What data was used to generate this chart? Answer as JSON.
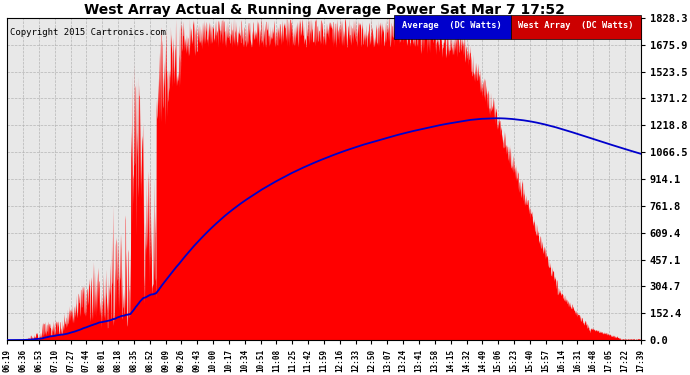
{
  "title": "West Array Actual & Running Average Power Sat Mar 7 17:52",
  "copyright": "Copyright 2015 Cartronics.com",
  "ylabel_right": [
    "0.0",
    "152.4",
    "304.7",
    "457.1",
    "609.4",
    "761.8",
    "914.1",
    "1066.5",
    "1218.8",
    "1371.2",
    "1523.5",
    "1675.9",
    "1828.3"
  ],
  "ymax": 1828.3,
  "ymin": 0.0,
  "background_color": "#ffffff",
  "plot_bg_color": "#e8e8e8",
  "grid_color": "#b0b0b0",
  "fill_color": "#ff0000",
  "avg_line_color": "#0000cc",
  "legend_avg_bg": "#0000cc",
  "legend_west_bg": "#cc0000",
  "x_tick_labels": [
    "06:19",
    "06:36",
    "06:53",
    "07:10",
    "07:27",
    "07:44",
    "08:01",
    "08:18",
    "08:35",
    "08:52",
    "09:09",
    "09:26",
    "09:43",
    "10:00",
    "10:17",
    "10:34",
    "10:51",
    "11:08",
    "11:25",
    "11:42",
    "11:59",
    "12:16",
    "12:33",
    "12:50",
    "13:07",
    "13:24",
    "13:41",
    "13:58",
    "14:15",
    "14:32",
    "14:49",
    "15:06",
    "15:23",
    "15:40",
    "15:57",
    "16:14",
    "16:31",
    "16:48",
    "17:05",
    "17:22",
    "17:39"
  ]
}
